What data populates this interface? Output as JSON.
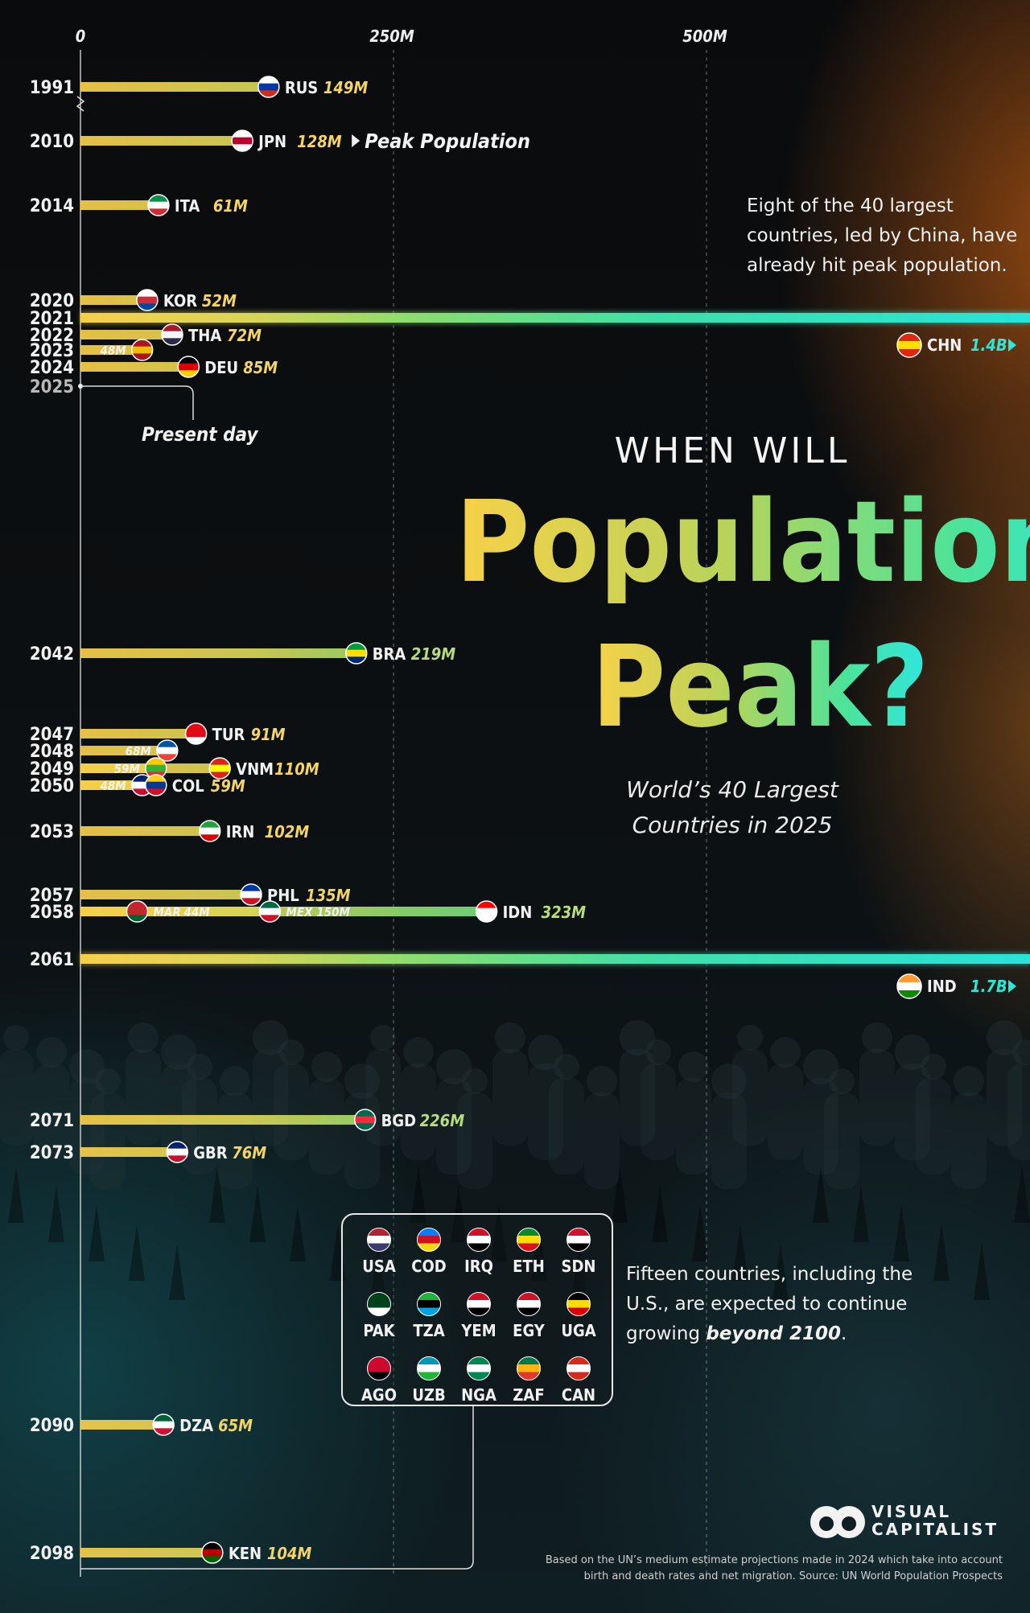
{
  "title": {
    "line1": "WHEN WILL",
    "line2": "Populations",
    "line3": "Peak?",
    "subtitle_line1": "World’s 40 Largest",
    "subtitle_line2": "Countries in 2025"
  },
  "notes": {
    "peak_note_line1": "Eight of the 40 largest",
    "peak_note_line2": "countries, led by China, have",
    "peak_note_line3": "already hit peak population.",
    "growth_note_line1": "Fifteen countries, including the",
    "growth_note_line2": "U.S., are expected to continue",
    "growth_note_line3_a": "growing ",
    "growth_note_line3_b": "beyond 2100",
    "growth_note_line3_c": "."
  },
  "annotations": {
    "peak_population": "Peak Population",
    "present_day": "Present day"
  },
  "beyond_2100": [
    {
      "code": "USA",
      "colors": [
        "#b22234",
        "#ffffff",
        "#3c3b6e"
      ]
    },
    {
      "code": "COD",
      "colors": [
        "#007fff",
        "#ce1021",
        "#f7d618"
      ]
    },
    {
      "code": "IRQ",
      "colors": [
        "#ce1126",
        "#ffffff",
        "#000000"
      ]
    },
    {
      "code": "ETH",
      "colors": [
        "#078930",
        "#fcdd09",
        "#da121a"
      ]
    },
    {
      "code": "SDN",
      "colors": [
        "#d21034",
        "#ffffff",
        "#000000"
      ]
    },
    {
      "code": "PAK",
      "colors": [
        "#01411c",
        "#01411c",
        "#ffffff"
      ]
    },
    {
      "code": "TZA",
      "colors": [
        "#1eb53a",
        "#000000",
        "#00a3dd"
      ]
    },
    {
      "code": "YEM",
      "colors": [
        "#ce1126",
        "#ffffff",
        "#000000"
      ]
    },
    {
      "code": "EGY",
      "colors": [
        "#ce1126",
        "#ffffff",
        "#000000"
      ]
    },
    {
      "code": "UGA",
      "colors": [
        "#000000",
        "#fcdc04",
        "#d90000"
      ]
    },
    {
      "code": "AGO",
      "colors": [
        "#cc092f",
        "#cc092f",
        "#000000"
      ]
    },
    {
      "code": "UZB",
      "colors": [
        "#0099b5",
        "#ffffff",
        "#1eb53a"
      ]
    },
    {
      "code": "NGA",
      "colors": [
        "#008751",
        "#ffffff",
        "#008751"
      ]
    },
    {
      "code": "ZAF",
      "colors": [
        "#007a4d",
        "#ffb612",
        "#de3831"
      ]
    },
    {
      "code": "CAN",
      "colors": [
        "#d52b1e",
        "#ffffff",
        "#d52b1e"
      ]
    }
  ],
  "footer": {
    "line1": "Based on the UN’s medium estimate projections made in 2024 which take into account",
    "line2": "birth and death rates and net migration. Source: UN World Population Prospects"
  },
  "brand": {
    "line1": "VISUAL",
    "line2": "CAPITALIST"
  },
  "chart_data": {
    "type": "bar",
    "x_axis": {
      "ticks": [
        "0",
        "250M",
        "500M"
      ],
      "tick_values": [
        0,
        250,
        500
      ],
      "unit": "M",
      "grid": true
    },
    "present_year": "2025",
    "rows": [
      {
        "year": "1991",
        "code": "RUS",
        "label": "149M",
        "value": 149,
        "colors": [
          "#ffffff",
          "#0039a6",
          "#d52b1e"
        ]
      },
      {
        "year": "2010",
        "code": "JPN",
        "label": "128M",
        "value": 128,
        "colors": [
          "#ffffff",
          "#bc002d",
          "#ffffff"
        ]
      },
      {
        "year": "2014",
        "code": "ITA",
        "label": "61M",
        "value": 61,
        "colors": [
          "#009246",
          "#ffffff",
          "#ce2b37"
        ]
      },
      {
        "year": "2020",
        "code": "KOR",
        "label": "52M",
        "value": 52,
        "colors": [
          "#ffffff",
          "#cd2e3a",
          "#0047a0"
        ]
      },
      {
        "year": "2021",
        "code": "CHN",
        "label": "1.4B",
        "value": 1400,
        "colors": [
          "#de2910",
          "#ffde00",
          "#de2910"
        ]
      },
      {
        "year": "2022",
        "code": "THA",
        "label": "72M",
        "value": 72,
        "colors": [
          "#a51931",
          "#f4f5f8",
          "#2d2a4a"
        ]
      },
      {
        "year": "2023",
        "code": "ESP",
        "label": "48M",
        "value": 48,
        "colors": [
          "#aa151b",
          "#f1bf00",
          "#aa151b"
        ]
      },
      {
        "year": "2024",
        "code": "DEU",
        "label": "85M",
        "value": 85,
        "colors": [
          "#000000",
          "#dd0000",
          "#ffce00"
        ]
      },
      {
        "year": "2042",
        "code": "BRA",
        "label": "219M",
        "value": 219,
        "colors": [
          "#009c3b",
          "#ffdf00",
          "#002776"
        ]
      },
      {
        "year": "2047",
        "code": "TUR",
        "label": "91M",
        "value": 91,
        "colors": [
          "#e30a17",
          "#e30a17",
          "#ffffff"
        ]
      },
      {
        "year": "2048",
        "code": "FRA",
        "label": "68M",
        "value": 68,
        "colors": [
          "#0055a4",
          "#ffffff",
          "#ef4135"
        ]
      },
      {
        "year": "2049",
        "code": "MMR",
        "label": "59M",
        "value": 59,
        "colors": [
          "#fecb00",
          "#34b233",
          "#ea2839"
        ]
      },
      {
        "year": "2049",
        "code": "VNM",
        "label": "110M",
        "value": 110,
        "colors": [
          "#da251d",
          "#ffff00",
          "#da251d"
        ]
      },
      {
        "year": "2050",
        "code": "GBR",
        "label": "48M",
        "value": 48,
        "colors": [
          "#012169",
          "#ffffff",
          "#c8102e"
        ]
      },
      {
        "year": "2050",
        "code": "COL",
        "label": "59M",
        "value": 59,
        "colors": [
          "#fcd116",
          "#003893",
          "#ce1126"
        ]
      },
      {
        "year": "2053",
        "code": "IRN",
        "label": "102M",
        "value": 102,
        "colors": [
          "#239f40",
          "#ffffff",
          "#da0000"
        ]
      },
      {
        "year": "2057",
        "code": "PHL",
        "label": "135M",
        "value": 135,
        "colors": [
          "#0038a8",
          "#ffffff",
          "#ce1126"
        ]
      },
      {
        "year": "2058",
        "code": "MAR",
        "label": "44M",
        "value": 44,
        "colors": [
          "#c1272d",
          "#c1272d",
          "#006233"
        ]
      },
      {
        "year": "2058",
        "code": "MEX",
        "label": "150M",
        "value": 150,
        "colors": [
          "#006847",
          "#ffffff",
          "#ce1126"
        ]
      },
      {
        "year": "2058",
        "code": "IDN",
        "label": "323M",
        "value": 323,
        "colors": [
          "#ff0000",
          "#ffffff",
          "#ffffff"
        ]
      },
      {
        "year": "2061",
        "code": "IND",
        "label": "1.7B",
        "value": 1700,
        "colors": [
          "#ff9933",
          "#ffffff",
          "#138808"
        ]
      },
      {
        "year": "2071",
        "code": "BGD",
        "label": "226M",
        "value": 226,
        "colors": [
          "#006a4e",
          "#f42a41",
          "#006a4e"
        ]
      },
      {
        "year": "2073",
        "code": "GBR",
        "label": "76M",
        "value": 76,
        "colors": [
          "#012169",
          "#ffffff",
          "#c8102e"
        ]
      },
      {
        "year": "2090",
        "code": "DZA",
        "label": "65M",
        "value": 65,
        "colors": [
          "#006233",
          "#ffffff",
          "#d21034"
        ]
      },
      {
        "year": "2098",
        "code": "KEN",
        "label": "104M",
        "value": 104,
        "colors": [
          "#000000",
          "#bb0000",
          "#006600"
        ]
      }
    ]
  }
}
